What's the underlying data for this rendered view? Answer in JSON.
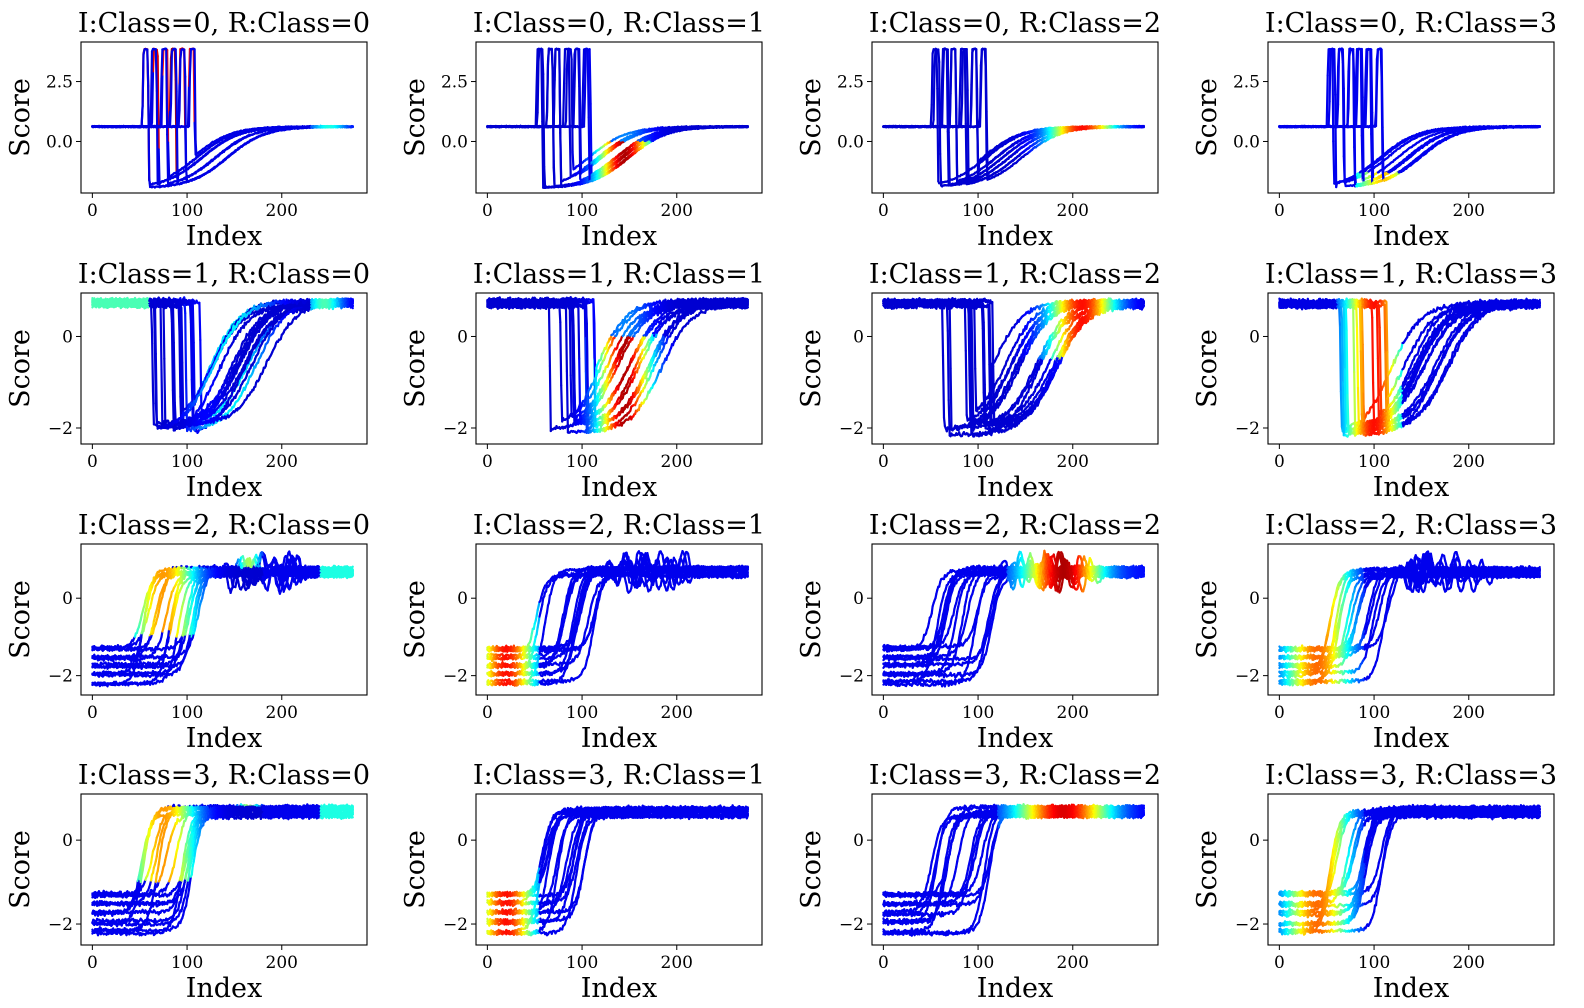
{
  "figure": {
    "type": "line",
    "description_colormap": "jet"
  },
  "chart_data": [
    {
      "type": "line",
      "title": "I:Class=0, R:Class=0",
      "xlabel": "Index",
      "ylabel": "Score",
      "xticks": [
        0,
        100,
        200
      ],
      "yticks": [
        "0.0",
        "2.5"
      ],
      "ytick_values": [
        0,
        2.5
      ],
      "xlim": [
        -12,
        290
      ],
      "ylim": [
        -2.15,
        4.15
      ],
      "pattern": "cbf",
      "variant": 0,
      "heat": "spikes_red",
      "n_series": 12,
      "series_length": 276
    },
    {
      "type": "line",
      "title": "I:Class=0, R:Class=1",
      "xlabel": "Index",
      "ylabel": "Score",
      "xticks": [
        0,
        100,
        200
      ],
      "yticks": [
        "0.0",
        "2.5"
      ],
      "ytick_values": [
        0,
        2.5
      ],
      "xlim": [
        -12,
        290
      ],
      "ylim": [
        -2.15,
        4.15
      ],
      "pattern": "cbf",
      "variant": 0,
      "heat": "recovery",
      "n_series": 12,
      "series_length": 276
    },
    {
      "type": "line",
      "title": "I:Class=0, R:Class=2",
      "xlabel": "Index",
      "ylabel": "Score",
      "xticks": [
        0,
        100,
        200
      ],
      "yticks": [
        "0.0",
        "2.5"
      ],
      "ytick_values": [
        0,
        2.5
      ],
      "xlim": [
        -12,
        290
      ],
      "ylim": [
        -2.15,
        4.15
      ],
      "pattern": "cbf",
      "variant": 0,
      "heat": "late",
      "n_series": 12,
      "series_length": 276
    },
    {
      "type": "line",
      "title": "I:Class=0, R:Class=3",
      "xlabel": "Index",
      "ylabel": "Score",
      "xticks": [
        0,
        100,
        200
      ],
      "yticks": [
        "0.0",
        "2.5"
      ],
      "ytick_values": [
        0,
        2.5
      ],
      "xlim": [
        -12,
        290
      ],
      "ylim": [
        -2.15,
        4.15
      ],
      "pattern": "cbf",
      "variant": 0,
      "heat": "bottom",
      "n_series": 12,
      "series_length": 276
    },
    {
      "type": "line",
      "title": "I:Class=1, R:Class=0",
      "xlabel": "Index",
      "ylabel": "Score",
      "xticks": [
        0,
        100,
        200
      ],
      "yticks": [
        "0",
        "−2"
      ],
      "ytick_values": [
        0,
        -2
      ],
      "xlim": [
        -12,
        290
      ],
      "ylim": [
        -2.35,
        0.95
      ],
      "pattern": "drop",
      "variant": 1,
      "heat": "plateau_cyan",
      "n_series": 16,
      "series_length": 276
    },
    {
      "type": "line",
      "title": "I:Class=1, R:Class=1",
      "xlabel": "Index",
      "ylabel": "Score",
      "xticks": [
        0,
        100,
        200
      ],
      "yticks": [
        "0",
        "−2"
      ],
      "ytick_values": [
        0,
        -2
      ],
      "xlim": [
        -12,
        290
      ],
      "ylim": [
        -2.35,
        0.95
      ],
      "pattern": "drop",
      "variant": 1,
      "heat": "recovery",
      "n_series": 16,
      "series_length": 276
    },
    {
      "type": "line",
      "title": "I:Class=1, R:Class=2",
      "xlabel": "Index",
      "ylabel": "Score",
      "xticks": [
        0,
        100,
        200
      ],
      "yticks": [
        "0",
        "−2"
      ],
      "ytick_values": [
        0,
        -2
      ],
      "xlim": [
        -12,
        290
      ],
      "ylim": [
        -2.35,
        0.95
      ],
      "pattern": "drop",
      "variant": 1,
      "heat": "late",
      "n_series": 16,
      "series_length": 276
    },
    {
      "type": "line",
      "title": "I:Class=1, R:Class=3",
      "xlabel": "Index",
      "ylabel": "Score",
      "xticks": [
        0,
        100,
        200
      ],
      "yticks": [
        "0",
        "−2"
      ],
      "ytick_values": [
        0,
        -2
      ],
      "xlim": [
        -12,
        290
      ],
      "ylim": [
        -2.35,
        0.95
      ],
      "pattern": "drop",
      "variant": 1,
      "heat": "drop_mixed",
      "n_series": 16,
      "series_length": 276
    },
    {
      "type": "line",
      "title": "I:Class=2, R:Class=0",
      "xlabel": "Index",
      "ylabel": "Score",
      "xticks": [
        0,
        100,
        200
      ],
      "yticks": [
        "0",
        "−2"
      ],
      "ytick_values": [
        0,
        -2
      ],
      "xlim": [
        -12,
        290
      ],
      "ylim": [
        -2.5,
        1.4
      ],
      "pattern": "rise_osc",
      "variant": 2,
      "heat": "rise_mid",
      "n_series": 16,
      "series_length": 276
    },
    {
      "type": "line",
      "title": "I:Class=2, R:Class=1",
      "xlabel": "Index",
      "ylabel": "Score",
      "xticks": [
        0,
        100,
        200
      ],
      "yticks": [
        "0",
        "−2"
      ],
      "ytick_values": [
        0,
        -2
      ],
      "xlim": [
        -12,
        290
      ],
      "ylim": [
        -2.5,
        1.4
      ],
      "pattern": "rise_osc",
      "variant": 2,
      "heat": "early",
      "n_series": 16,
      "series_length": 276
    },
    {
      "type": "line",
      "title": "I:Class=2, R:Class=2",
      "xlabel": "Index",
      "ylabel": "Score",
      "xticks": [
        0,
        100,
        200
      ],
      "yticks": [
        "0",
        "−2"
      ],
      "ytick_values": [
        0,
        -2
      ],
      "xlim": [
        -12,
        290
      ],
      "ylim": [
        -2.5,
        1.4
      ],
      "pattern": "rise_osc",
      "variant": 2,
      "heat": "osc_late",
      "n_series": 16,
      "series_length": 276
    },
    {
      "type": "line",
      "title": "I:Class=2, R:Class=3",
      "xlabel": "Index",
      "ylabel": "Score",
      "xticks": [
        0,
        100,
        200
      ],
      "yticks": [
        "0",
        "−2"
      ],
      "ytick_values": [
        0,
        -2
      ],
      "xlim": [
        -12,
        290
      ],
      "ylim": [
        -2.5,
        1.4
      ],
      "pattern": "rise_osc",
      "variant": 2,
      "heat": "early_rise",
      "n_series": 16,
      "series_length": 276
    },
    {
      "type": "line",
      "title": "I:Class=3, R:Class=0",
      "xlabel": "Index",
      "ylabel": "Score",
      "xticks": [
        0,
        100,
        200
      ],
      "yticks": [
        "0",
        "−2"
      ],
      "ytick_values": [
        0,
        -2
      ],
      "xlim": [
        -12,
        290
      ],
      "ylim": [
        -2.5,
        1.1
      ],
      "pattern": "rise",
      "variant": 3,
      "heat": "rise_mid",
      "n_series": 16,
      "series_length": 276
    },
    {
      "type": "line",
      "title": "I:Class=3, R:Class=1",
      "xlabel": "Index",
      "ylabel": "Score",
      "xticks": [
        0,
        100,
        200
      ],
      "yticks": [
        "0",
        "−2"
      ],
      "ytick_values": [
        0,
        -2
      ],
      "xlim": [
        -12,
        290
      ],
      "ylim": [
        -2.5,
        1.1
      ],
      "pattern": "rise",
      "variant": 3,
      "heat": "early",
      "n_series": 16,
      "series_length": 276
    },
    {
      "type": "line",
      "title": "I:Class=3, R:Class=2",
      "xlabel": "Index",
      "ylabel": "Score",
      "xticks": [
        0,
        100,
        200
      ],
      "yticks": [
        "0",
        "−2"
      ],
      "ytick_values": [
        0,
        -2
      ],
      "xlim": [
        -12,
        290
      ],
      "ylim": [
        -2.5,
        1.1
      ],
      "pattern": "rise",
      "variant": 3,
      "heat": "plateau_late",
      "n_series": 16,
      "series_length": 276
    },
    {
      "type": "line",
      "title": "I:Class=3, R:Class=3",
      "xlabel": "Index",
      "ylabel": "Score",
      "xticks": [
        0,
        100,
        200
      ],
      "yticks": [
        "0",
        "−2"
      ],
      "ytick_values": [
        0,
        -2
      ],
      "xlim": [
        -12,
        290
      ],
      "ylim": [
        -2.5,
        1.1
      ],
      "pattern": "rise",
      "variant": 3,
      "heat": "early_rise",
      "n_series": 16,
      "series_length": 276
    }
  ]
}
